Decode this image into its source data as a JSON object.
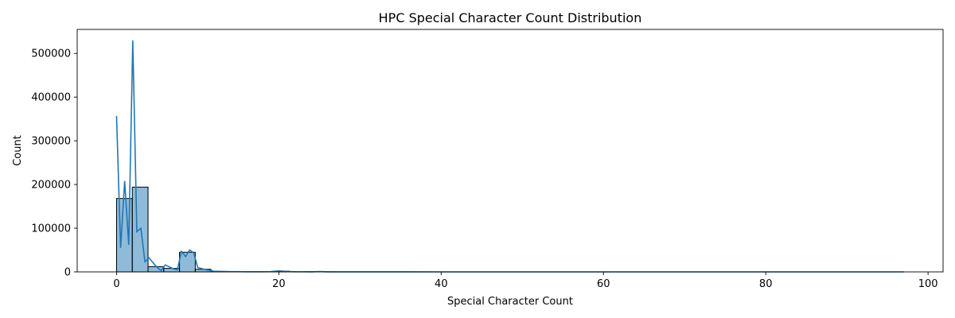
{
  "chart_data": {
    "type": "bar",
    "title": "HPC Special Character Count Distribution",
    "xlabel": "Special Character Count",
    "ylabel": "Count",
    "xlim": [
      -4.85,
      101.85
    ],
    "ylim": [
      0,
      555000
    ],
    "x_ticks": [
      0,
      20,
      40,
      60,
      80,
      100
    ],
    "x_tick_labels": [
      "0",
      "20",
      "40",
      "60",
      "80",
      "100"
    ],
    "y_ticks": [
      0,
      100000,
      200000,
      300000,
      400000,
      500000
    ],
    "y_tick_labels": [
      "0",
      "100000",
      "200000",
      "300000",
      "400000",
      "500000"
    ],
    "grid": false,
    "legend": "none",
    "bins": [
      {
        "x0": 0.0,
        "x1": 1.94,
        "count": 168000
      },
      {
        "x0": 1.94,
        "x1": 3.88,
        "count": 194000
      },
      {
        "x0": 3.88,
        "x1": 5.82,
        "count": 12000
      },
      {
        "x0": 5.82,
        "x1": 7.76,
        "count": 8000
      },
      {
        "x0": 7.76,
        "x1": 9.7,
        "count": 45000
      },
      {
        "x0": 9.7,
        "x1": 11.64,
        "count": 6000
      },
      {
        "x0": 11.64,
        "x1": 13.58,
        "count": 800
      },
      {
        "x0": 13.58,
        "x1": 15.52,
        "count": 300
      },
      {
        "x0": 15.52,
        "x1": 17.46,
        "count": 200
      },
      {
        "x0": 17.46,
        "x1": 19.4,
        "count": 400
      },
      {
        "x0": 19.4,
        "x1": 21.34,
        "count": 1500
      },
      {
        "x0": 21.34,
        "x1": 23.28,
        "count": 300
      },
      {
        "x0": 23.28,
        "x1": 25.22,
        "count": 500
      },
      {
        "x0": 25.22,
        "x1": 27.16,
        "count": 100
      }
    ],
    "kde_line": {
      "x": [
        0,
        0.5,
        1,
        1.5,
        2,
        2.5,
        3,
        3.5,
        4,
        5,
        5.5,
        6,
        7,
        7.5,
        8,
        8.5,
        9,
        9.5,
        10,
        11,
        12,
        14,
        16,
        18,
        19,
        20,
        21,
        22,
        24,
        25,
        26,
        30,
        40,
        50,
        60,
        70,
        80,
        90,
        97
      ],
      "y": [
        357000,
        55000,
        208000,
        62000,
        530000,
        92000,
        100000,
        23000,
        32000,
        10000,
        3000,
        16000,
        7000,
        5000,
        47000,
        35000,
        50000,
        44000,
        10000,
        5000,
        1500,
        700,
        400,
        300,
        600,
        2500,
        800,
        300,
        200,
        800,
        100,
        50,
        20,
        10,
        10,
        10,
        5,
        5,
        0
      ]
    },
    "colors": {
      "bar_fill": "#1f77b4",
      "bar_fill_opacity": "0.5",
      "bar_edge": "#000000",
      "line": "#1f77b4"
    }
  }
}
